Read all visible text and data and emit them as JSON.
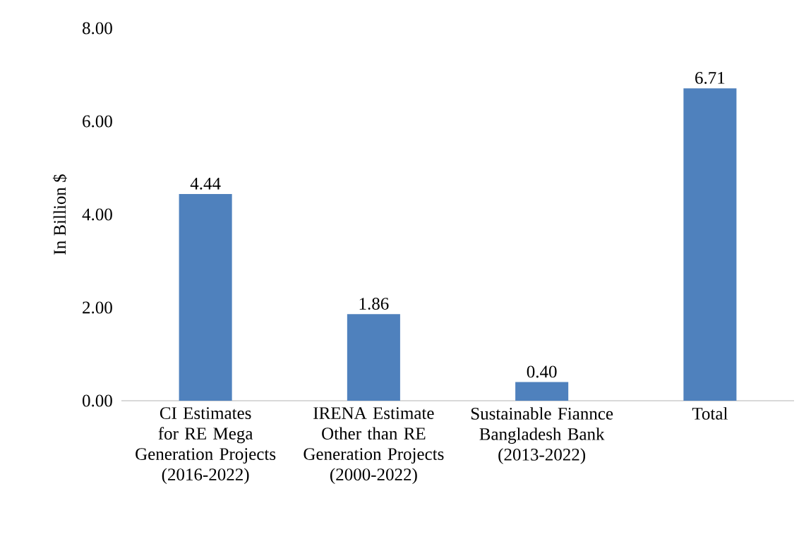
{
  "chart_data": {
    "type": "bar",
    "ylabel": "In Billion $",
    "categories": [
      "CI Estimates for RE Mega Generation Projects (2016-2022)",
      "IRENA Estimate Other than RE Generation Projects (2000-2022)",
      "Sustainable Fiannce Bangladesh Bank (2013-2022)",
      "Total"
    ],
    "values": [
      4.44,
      1.86,
      0.4,
      6.71
    ],
    "color": "#4f81bd",
    "ylim": [
      0,
      8
    ],
    "yticks": [
      {
        "value": 0,
        "label": "0.00"
      },
      {
        "value": 2,
        "label": "2.00"
      },
      {
        "value": 4,
        "label": "4.00"
      },
      {
        "value": 6,
        "label": "6.00"
      },
      {
        "value": 8,
        "label": "8.00"
      }
    ],
    "value_labels": [
      "4.44",
      "1.86",
      "0.40",
      "6.71"
    ]
  }
}
